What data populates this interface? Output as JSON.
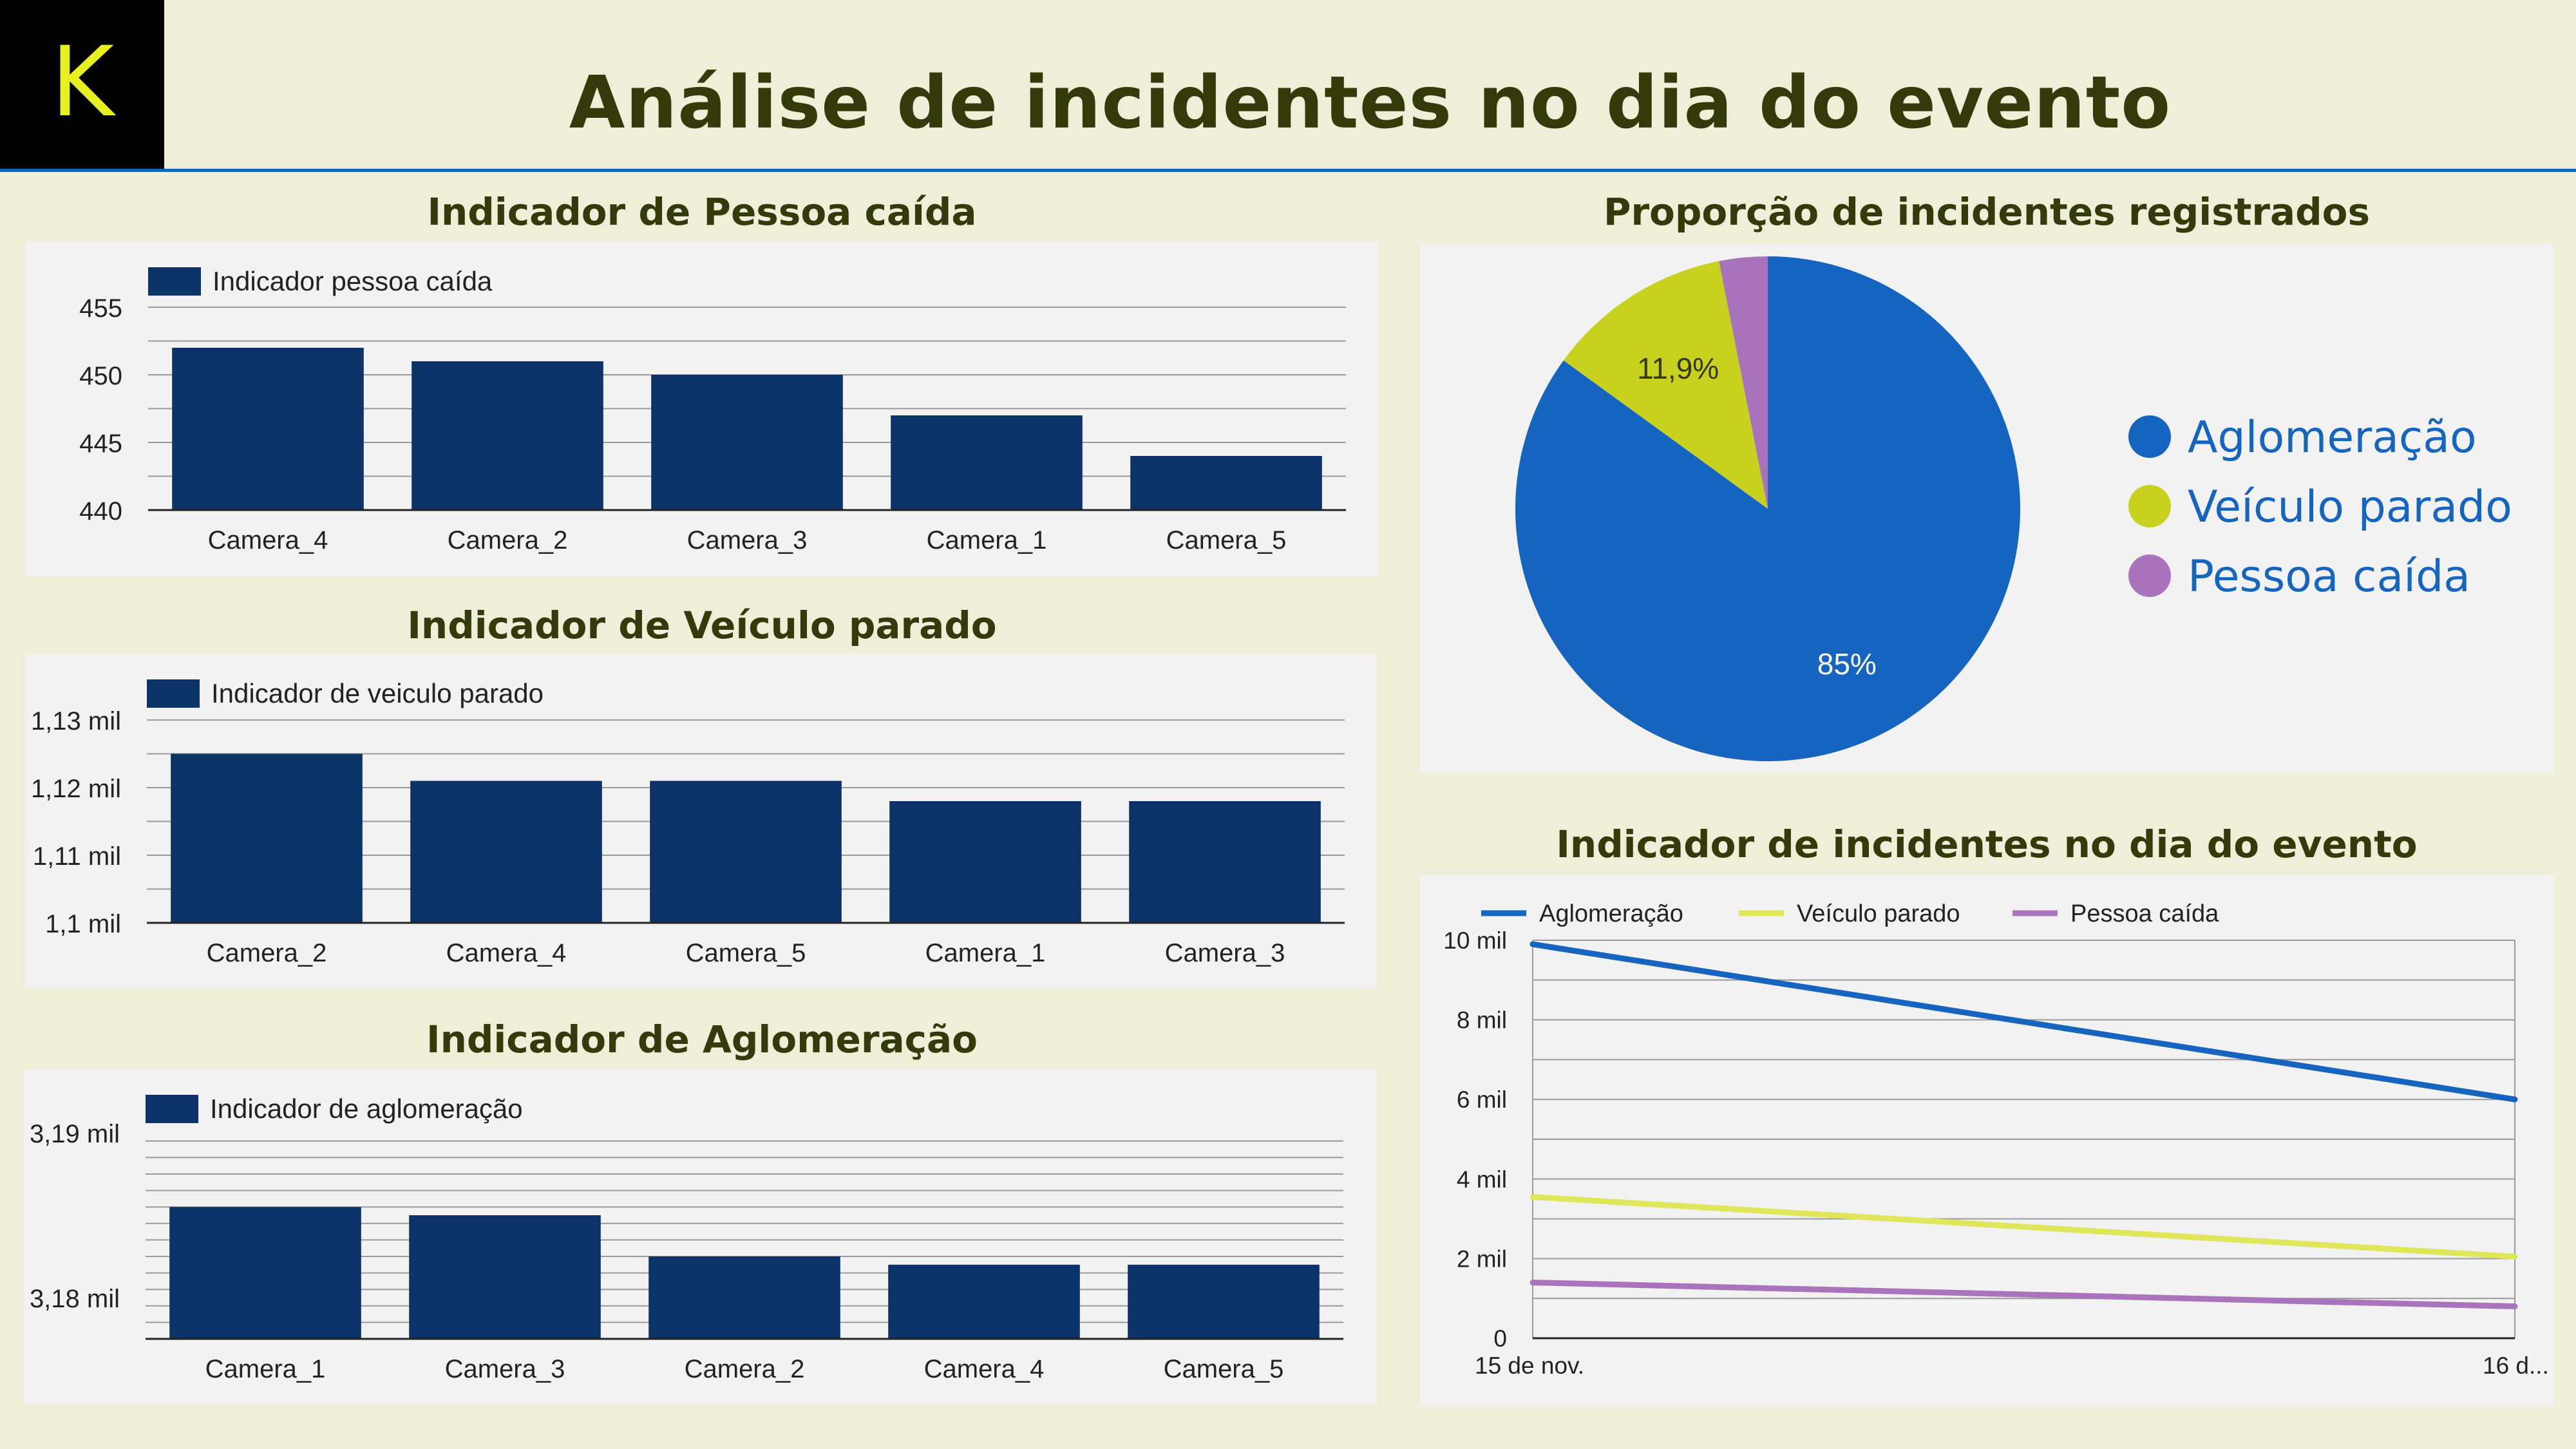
{
  "page": {
    "title": "Análise de incidentes no dia do evento",
    "logo_letter": "K"
  },
  "colors": {
    "background": "#eeeed9",
    "title": "#343a0a",
    "bar": "#0b3367",
    "aglomeracao": "#1565c0",
    "veiculo": "#c7d11e",
    "pessoa": "#a974bb",
    "veiculo_line": "#e0e65a"
  },
  "chart_data": [
    {
      "id": "pessoa",
      "type": "bar",
      "title": "Indicador de Pessoa caída",
      "series_name": "Indicador pessoa caída",
      "categories": [
        "Camera_4",
        "Camera_2",
        "Camera_3",
        "Camera_1",
        "Camera_5"
      ],
      "values": [
        452,
        451,
        450,
        447,
        444
      ],
      "ylim": [
        440,
        455
      ],
      "ticks": [
        440,
        445,
        450,
        455
      ],
      "tick_labels": [
        "440",
        "445",
        "450",
        "455"
      ],
      "minor_step": 2.5
    },
    {
      "id": "veiculo",
      "type": "bar",
      "title": "Indicador de Veículo parado",
      "series_name": "Indicador de veiculo parado",
      "categories": [
        "Camera_2",
        "Camera_4",
        "Camera_5",
        "Camera_1",
        "Camera_3"
      ],
      "values": [
        1125,
        1121,
        1121,
        1118,
        1118
      ],
      "ylim": [
        1100,
        1130
      ],
      "ticks": [
        1100,
        1110,
        1120,
        1130
      ],
      "tick_labels": [
        "1,1 mil",
        "1,11 mil",
        "1,12 mil",
        "1,13 mil"
      ],
      "minor_step": 5
    },
    {
      "id": "aglomeracao",
      "type": "bar",
      "title": "Indicador de Aglomeração",
      "series_name": "Indicador de aglomeração",
      "categories": [
        "Camera_1",
        "Camera_3",
        "Camera_2",
        "Camera_4",
        "Camera_5"
      ],
      "values": [
        3185.5,
        3185,
        3182.5,
        3182,
        3182
      ],
      "ylim": [
        3177.5,
        3190
      ],
      "ticks": [
        3180,
        3190
      ],
      "tick_labels": [
        "3,18 mil",
        "3,19 mil"
      ],
      "minor_step": 1
    },
    {
      "id": "proporcao",
      "type": "pie",
      "title": "Proporção de incidentes registrados",
      "labels": [
        "Aglomeração",
        "Veículo parado",
        "Pessoa caída"
      ],
      "values": [
        85,
        11.9,
        3.1
      ],
      "data_labels": [
        "85%",
        "11,9%",
        ""
      ],
      "legend": "right"
    },
    {
      "id": "incidentes",
      "type": "line",
      "title": "Indicador de incidentes no dia do evento",
      "x": [
        "15 de nov.",
        "16 d..."
      ],
      "series": [
        {
          "name": "Aglomeração",
          "values": [
            9900,
            6000
          ]
        },
        {
          "name": "Veículo parado",
          "values": [
            3550,
            2050
          ]
        },
        {
          "name": "Pessoa caída",
          "values": [
            1400,
            800
          ]
        }
      ],
      "ylim": [
        0,
        10000
      ],
      "ticks": [
        0,
        2000,
        4000,
        6000,
        8000,
        10000
      ],
      "tick_labels": [
        "0",
        "2 mil",
        "4 mil",
        "6 mil",
        "8 mil",
        "10 mil"
      ],
      "legend": "top-left",
      "grid": true
    }
  ]
}
